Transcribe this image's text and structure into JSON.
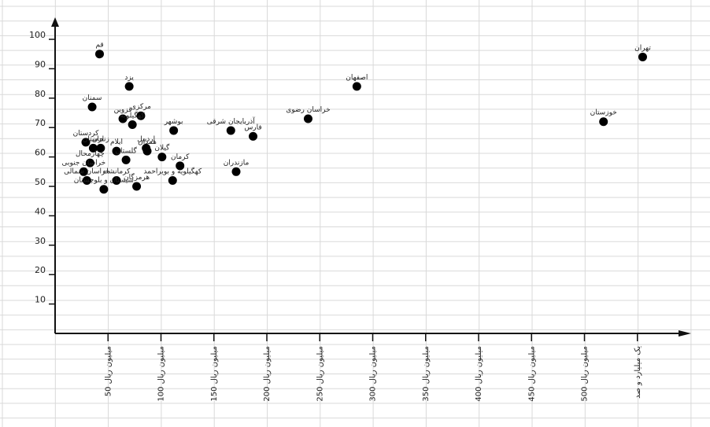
{
  "chart_data": {
    "type": "scatter",
    "title": "",
    "xlabel": "",
    "ylabel": "",
    "xlim": [
      0,
      550
    ],
    "ylim": [
      0,
      100
    ],
    "grid": true,
    "y_ticks": [
      10,
      20,
      30,
      40,
      50,
      60,
      70,
      80,
      90,
      100
    ],
    "x_ticks": [
      {
        "value": 50,
        "label": "50 میلیون ریال"
      },
      {
        "value": 100,
        "label": "100 میلیون ریال"
      },
      {
        "value": 150,
        "label": "150 میلیون ریال"
      },
      {
        "value": 200,
        "label": "200 میلیون ریال"
      },
      {
        "value": 250,
        "label": "250 میلیون ریال"
      },
      {
        "value": 300,
        "label": "300 میلیون ریال"
      },
      {
        "value": 350,
        "label": "350 میلیون ریال"
      },
      {
        "value": 400,
        "label": "400 میلیون ریال"
      },
      {
        "value": 450,
        "label": "450 میلیون ریال"
      },
      {
        "value": 500,
        "label": "500 میلیون ریال"
      },
      {
        "value": 550,
        "label": "یک میلیارد و صد"
      }
    ],
    "points": [
      {
        "label": "تهران",
        "x": 555,
        "y": 94
      },
      {
        "label": "خوزستان",
        "x": 518,
        "y": 72
      },
      {
        "label": "اصفهان",
        "x": 285,
        "y": 84
      },
      {
        "label": "خراسان رضوی",
        "x": 239,
        "y": 73
      },
      {
        "label": "فارس",
        "x": 187,
        "y": 67
      },
      {
        "label": "آذربایجان شرقی",
        "x": 166,
        "y": 69
      },
      {
        "label": "مازندران",
        "x": 171,
        "y": 55
      },
      {
        "label": "قم",
        "x": 42,
        "y": 95
      },
      {
        "label": "یزد",
        "x": 70,
        "y": 84
      },
      {
        "label": "سمنان",
        "x": 35,
        "y": 77
      },
      {
        "label": "مرکزی",
        "x": 81,
        "y": 74
      },
      {
        "label": "قزوین",
        "x": 64,
        "y": 73
      },
      {
        "label": "کهگیلویه",
        "x": 73,
        "y": 71
      },
      {
        "label": "بوشهر",
        "x": 112,
        "y": 69
      },
      {
        "label": "اردبیل",
        "x": 86,
        "y": 63
      },
      {
        "label": "زنجان",
        "x": 43,
        "y": 63
      },
      {
        "label": "کردستان",
        "x": 29,
        "y": 65
      },
      {
        "label": "لرستان",
        "x": 36,
        "y": 63
      },
      {
        "label": "گیلان",
        "x": 101,
        "y": 60
      },
      {
        "label": "ایلام",
        "x": 58,
        "y": 62
      },
      {
        "label": "گلستان",
        "x": 67,
        "y": 59
      },
      {
        "label": "همدان",
        "x": 87,
        "y": 62
      },
      {
        "label": "کرمان",
        "x": 118,
        "y": 57
      },
      {
        "label": "چهارمحال",
        "x": 33,
        "y": 58
      },
      {
        "label": "خراسان جنوبی",
        "x": 27,
        "y": 55
      },
      {
        "label": "کرمانشاه",
        "x": 58,
        "y": 52
      },
      {
        "label": "هرمزگان",
        "x": 77,
        "y": 50
      },
      {
        "label": "کهگیلویه و بویراحمد",
        "x": 111,
        "y": 52
      },
      {
        "label": "خراسان شمالی",
        "x": 30,
        "y": 52
      },
      {
        "label": "سیستان و بلوچستان",
        "x": 46,
        "y": 49
      }
    ]
  }
}
